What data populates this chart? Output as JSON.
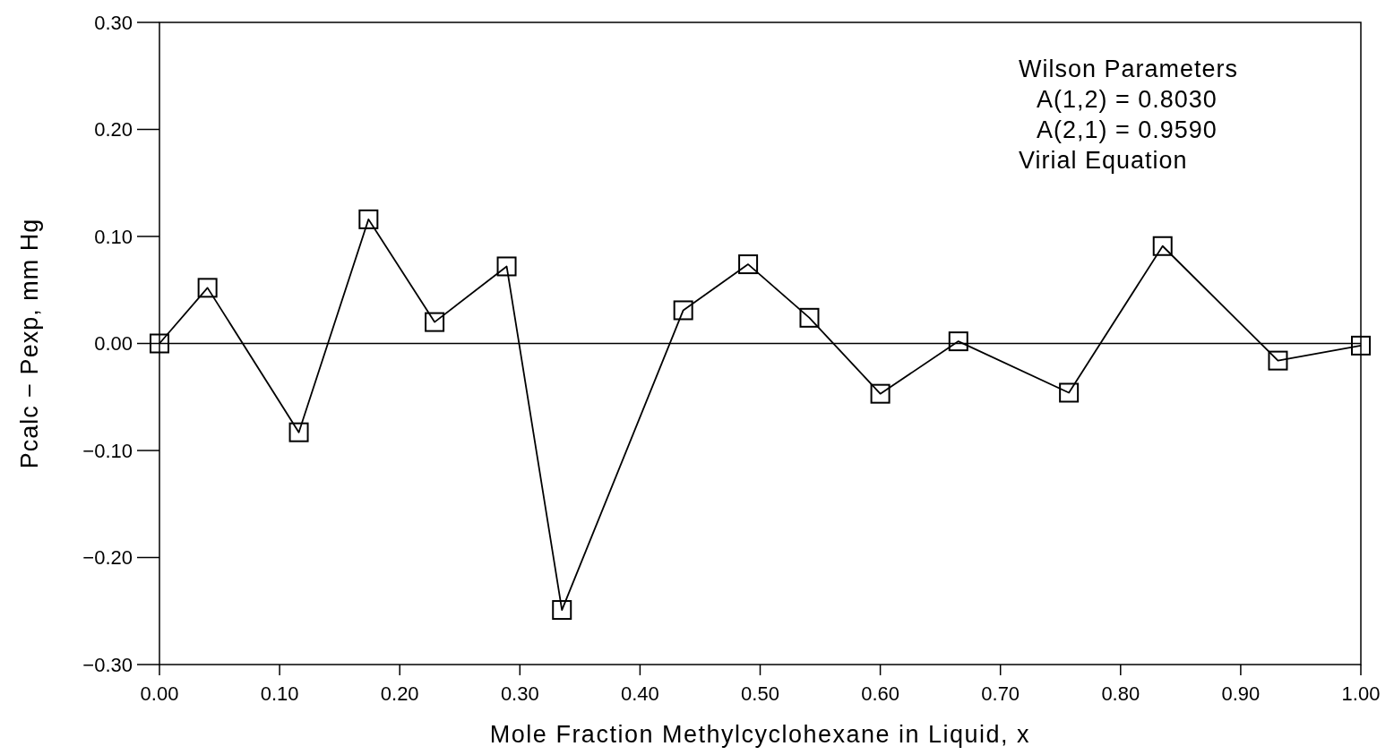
{
  "chart_data": {
    "type": "line",
    "xlabel": "Mole Fraction Methylcyclohexane in Liquid, x",
    "ylabel": "Pcalc  −  Pexp,  mm Hg",
    "annotations": [
      "Wilson Parameters",
      "A(1,2)  =  0.8030",
      "A(2,1)  =  0.9590",
      "Virial Equation"
    ],
    "x": [
      0,
      0.04,
      0.116,
      0.174,
      0.229,
      0.289,
      0.335,
      0.436,
      0.49,
      0.541,
      0.6,
      0.665,
      0.757,
      0.835,
      0.931,
      1.0
    ],
    "series": [
      {
        "color": "#000000",
        "values": [
          0,
          0.052,
          -0.083,
          0.116,
          0.02,
          0.072,
          -0.249,
          0.031,
          0.074,
          0.024,
          -0.047,
          0.002,
          -0.046,
          0.091,
          -0.016,
          -0.002
        ]
      }
    ],
    "marker": "square",
    "line_style": "solid",
    "xlim": [
      0,
      1
    ],
    "ylim": [
      -0.3,
      0.3
    ],
    "xticks": [
      {
        "value": 0,
        "label": "0.00"
      },
      {
        "value": 0.1,
        "label": "0.10"
      },
      {
        "value": 0.2,
        "label": "0.20"
      },
      {
        "value": 0.3,
        "label": "0.30"
      },
      {
        "value": 0.4,
        "label": "0.40"
      },
      {
        "value": 0.5,
        "label": "0.50"
      },
      {
        "value": 0.6,
        "label": "0.60"
      },
      {
        "value": 0.7,
        "label": "0.70"
      },
      {
        "value": 0.8,
        "label": "0.80"
      },
      {
        "value": 0.9,
        "label": "0.90"
      },
      {
        "value": 1,
        "label": "1.00"
      }
    ],
    "yticks": [
      {
        "value": -0.3,
        "label": "−0.30"
      },
      {
        "value": -0.2,
        "label": "−0.20"
      },
      {
        "value": -0.1,
        "label": "−0.10"
      },
      {
        "value": 0,
        "label": "0.00"
      },
      {
        "value": 0.1,
        "label": "0.10"
      },
      {
        "value": 0.2,
        "label": "0.20"
      },
      {
        "value": 0.3,
        "label": "0.30"
      }
    ],
    "ref_lines": [
      {
        "axis": "y",
        "value": 0,
        "color": "#000000"
      }
    ]
  }
}
